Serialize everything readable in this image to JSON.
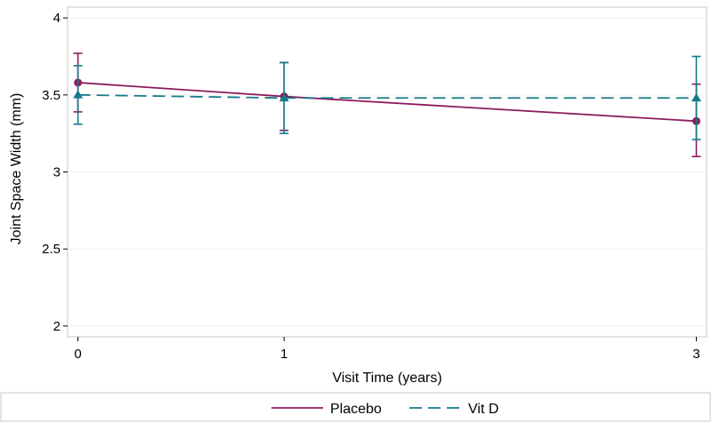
{
  "chart_data": {
    "type": "line",
    "xlabel": "Visit Time (years)",
    "ylabel": "Joint Space Width (mm)",
    "x": [
      0,
      1,
      3
    ],
    "x_ticks": [
      "0",
      "1",
      "3"
    ],
    "xlim": [
      -0.05,
      3.05
    ],
    "y_ticks": [
      "2",
      "2.5",
      "3",
      "3.5",
      "4"
    ],
    "ylim": [
      1.93,
      4.07
    ],
    "grid": true,
    "legend_position": "bottom-center",
    "series": [
      {
        "name": "Placebo",
        "color": "#8b1c5c",
        "line_style": "solid",
        "marker": "circle",
        "values": [
          3.58,
          3.49,
          3.33
        ],
        "ci_lower": [
          3.39,
          3.27,
          3.1
        ],
        "ci_upper": [
          3.77,
          3.71,
          3.57
        ]
      },
      {
        "name": "Vit D",
        "color": "#167a8c",
        "line_style": "dashed",
        "marker": "triangle",
        "values": [
          3.5,
          3.48,
          3.48
        ],
        "ci_lower": [
          3.31,
          3.25,
          3.21
        ],
        "ci_upper": [
          3.69,
          3.71,
          3.75
        ]
      }
    ]
  }
}
